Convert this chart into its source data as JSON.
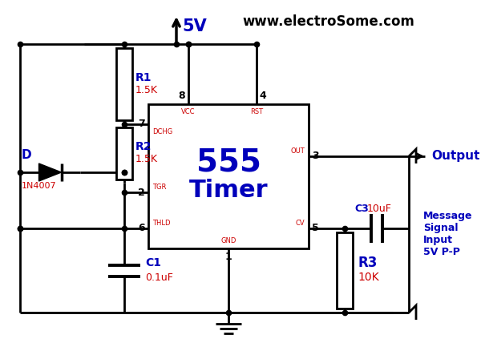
{
  "website": "www.electroSome.com",
  "vcc_label": "5V",
  "bg_color": "#ffffff",
  "line_color": "#000000",
  "blue_color": "#0000bb",
  "red_color": "#cc0000",
  "R1_label": "R1",
  "R1_val": "1.5K",
  "R2_label": "R2",
  "R2_val": "1.5K",
  "R3_label": "R3",
  "R3_val": "10K",
  "C1_label": "C1",
  "C1_val": "0.1uF",
  "C3_label": "C3",
  "C3_val": "10uF",
  "D_label": "D",
  "D_val": "1N4007",
  "timer_line1": "555",
  "timer_line2": "Timer",
  "output_label": "Output",
  "msg_label": "Message\nSignal\nInput\n5V P-P",
  "pin_DCHG": "DCHG",
  "pin_VCC": "VCC",
  "pin_RST": "RST",
  "pin_TGR": "TGR",
  "pin_OUT": "OUT",
  "pin_THLD": "THLD",
  "pin_GND": "GND",
  "pin_CV": "CV",
  "pn1": "1",
  "pn2": "2",
  "pn3": "3",
  "pn4": "4",
  "pn5": "5",
  "pn6": "6",
  "pn7": "7",
  "pn8": "8"
}
